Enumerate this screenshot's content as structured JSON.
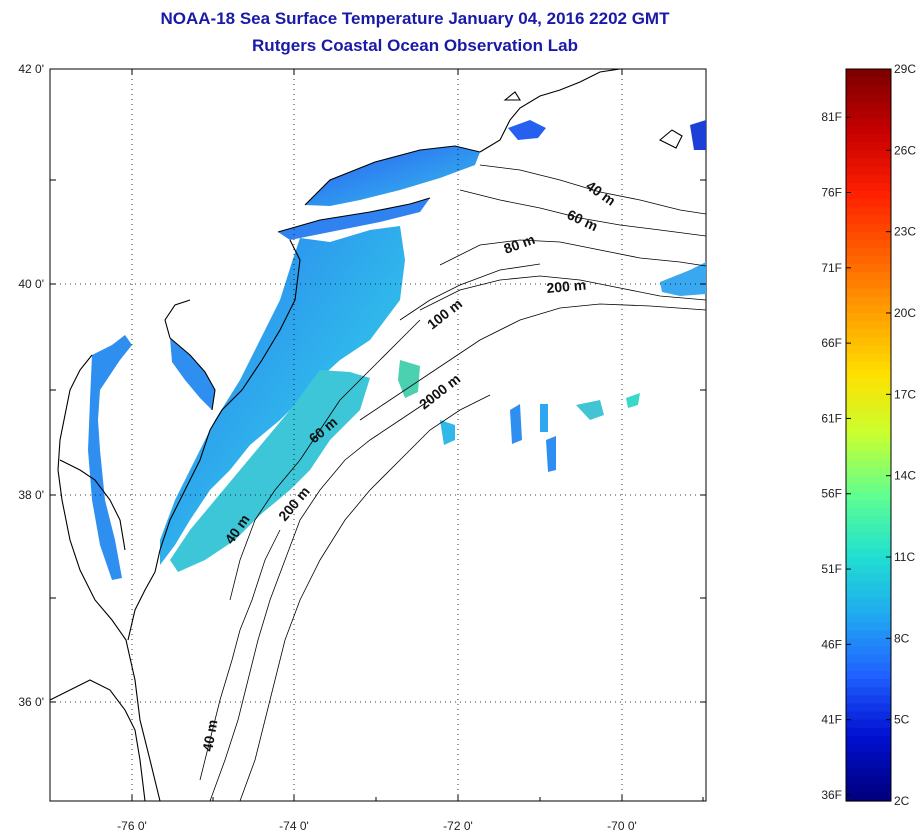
{
  "header": {
    "title": "NOAA-18 Sea Surface Temperature January 04, 2016 2202 GMT",
    "subtitle": "Rutgers Coastal Ocean Observation Lab"
  },
  "map": {
    "lon_range": [
      -77,
      -69
    ],
    "lat_range": [
      35,
      42
    ],
    "lon_ticks": [
      {
        "value": -76,
        "label": "-76 0'"
      },
      {
        "value": -74,
        "label": "-74 0'"
      },
      {
        "value": -72,
        "label": "-72 0'"
      },
      {
        "value": -70,
        "label": "-70 0'"
      }
    ],
    "lat_ticks": [
      {
        "value": 42,
        "label": "42 0'"
      },
      {
        "value": 40,
        "label": "40 0'"
      },
      {
        "value": 38,
        "label": "38 0'"
      },
      {
        "value": 36,
        "label": "36 0'"
      }
    ],
    "grid": "dotted",
    "isobath_labels": [
      "40 m",
      "60 m",
      "80 m",
      "200 m",
      "100 m",
      "2000 m",
      "60 m",
      "200 m",
      "40 m",
      "40 m"
    ]
  },
  "colorbar": {
    "celsius_labels": [
      "29C",
      "26C",
      "23C",
      "20C",
      "17C",
      "14C",
      "11C",
      "8C",
      "5C",
      "2C"
    ],
    "fahrenheit_labels": [
      "81F",
      "76F",
      "71F",
      "66F",
      "61F",
      "56F",
      "51F",
      "46F",
      "41F",
      "36F"
    ],
    "range_c": [
      2,
      29
    ],
    "colors": [
      "#800000",
      "#c80000",
      "#ff2000",
      "#ff6000",
      "#ffa000",
      "#ffe000",
      "#c8ff30",
      "#60ff90",
      "#20e0d0",
      "#20a8f0",
      "#2060ff",
      "#0010d0",
      "#000080"
    ]
  }
}
